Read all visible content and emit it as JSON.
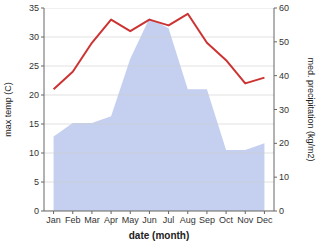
{
  "chart_data": {
    "type": "line",
    "categories": [
      "Jan",
      "Feb",
      "Mar",
      "Apr",
      "May",
      "Jun",
      "Jul",
      "Aug",
      "Sep",
      "Oct",
      "Nov",
      "Dec"
    ],
    "xlabel": "date (month)",
    "ylabel": "max temp (C)",
    "y2label": "med. precipitation (kg/m2)",
    "series": [
      {
        "type": "area",
        "axis": "y2",
        "color": "#c5d0f0",
        "values": [
          22,
          26,
          26,
          28,
          45,
          57,
          54,
          36,
          36,
          18,
          18,
          20
        ]
      },
      {
        "type": "line",
        "color": "#cc3333",
        "values": [
          21,
          24,
          29,
          33,
          31,
          33,
          32,
          34,
          29,
          26,
          22,
          23
        ]
      }
    ],
    "ylim": [
      0,
      35
    ],
    "yticks": [
      0,
      5,
      10,
      15,
      20,
      25,
      30,
      35
    ],
    "y2lim": [
      0,
      60
    ],
    "y2ticks": [
      0,
      10,
      20,
      30,
      40,
      50,
      60
    ],
    "grid": true
  }
}
